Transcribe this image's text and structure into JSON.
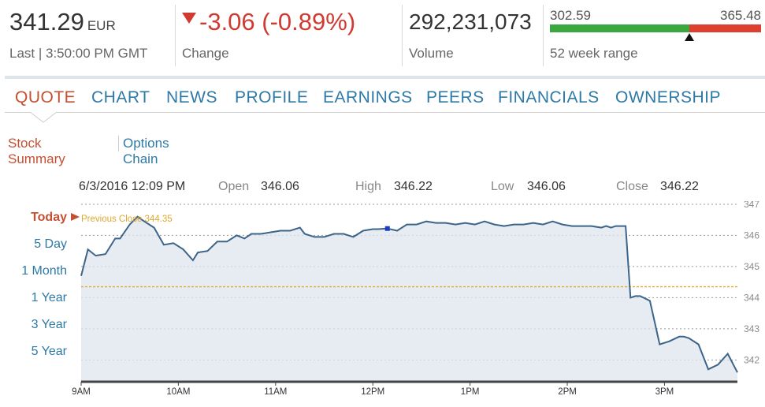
{
  "quote": {
    "price": "341.29",
    "currency": "EUR",
    "last_label": "Last | 3:50:00 PM GMT",
    "change": "-3.06 (-0.89%)",
    "change_label": "Change",
    "volume": "292,231,073",
    "volume_label": "Volume",
    "range_low": "302.59",
    "range_high": "365.48",
    "range_label": "52 week range",
    "range_position": 0.66
  },
  "tabs": [
    {
      "label": "QUOTE",
      "active": true
    },
    {
      "label": "CHART",
      "active": false
    },
    {
      "label": "NEWS",
      "active": false
    },
    {
      "label": "PROFILE",
      "active": false
    },
    {
      "label": "EARNINGS",
      "active": false
    },
    {
      "label": "PEERS",
      "active": false
    },
    {
      "label": "FINANCIALS",
      "active": false
    },
    {
      "label": "OWNERSHIP",
      "active": false
    }
  ],
  "subtabs": [
    {
      "label": "Stock Summary",
      "active": true
    },
    {
      "label": "Options Chain",
      "active": false
    }
  ],
  "stats": {
    "datetime": "6/3/2016 12:09 PM",
    "open_label": "Open",
    "open": "346.06",
    "high_label": "High",
    "high": "346.22",
    "low_label": "Low",
    "low": "346.06",
    "close_label": "Close",
    "close": "346.22"
  },
  "ranges": [
    {
      "label": "Today",
      "active": true
    },
    {
      "label": "5 Day",
      "active": false
    },
    {
      "label": "1 Month",
      "active": false
    },
    {
      "label": "1 Year",
      "active": false
    },
    {
      "label": "3 Year",
      "active": false
    },
    {
      "label": "5 Year",
      "active": false
    }
  ],
  "colors": {
    "accent": "#c45031",
    "link": "#2e79a6",
    "down": "#d03a31",
    "line": "#3d6489",
    "area": "#dde6ee",
    "prev_close": "#e0a82e"
  },
  "chart_data": {
    "type": "area",
    "title": "",
    "xlabel": "",
    "ylabel": "",
    "previous_close_label": "Previous Close 344.35",
    "previous_close": 344.35,
    "ylim": [
      341.3,
      347.1
    ],
    "yticks": [
      347,
      346,
      345,
      344,
      343,
      342
    ],
    "ytick_labels": [
      "347",
      "346",
      "345",
      "344",
      "343",
      "342"
    ],
    "xlim": [
      9.0,
      15.75
    ],
    "xticks": [
      9,
      10,
      11,
      12,
      13,
      14,
      15
    ],
    "xtick_labels": [
      "9AM",
      "10AM",
      "11AM",
      "12PM",
      "1PM",
      "2PM",
      "3PM"
    ],
    "grid": true,
    "highlight": {
      "x": 12.15,
      "y": 346.22
    },
    "x": [
      9.0,
      9.07,
      9.15,
      9.25,
      9.35,
      9.4,
      9.5,
      9.58,
      9.65,
      9.75,
      9.85,
      9.95,
      10.05,
      10.15,
      10.2,
      10.3,
      10.4,
      10.5,
      10.6,
      10.68,
      10.75,
      10.85,
      10.95,
      11.05,
      11.15,
      11.25,
      11.3,
      11.4,
      11.5,
      11.6,
      11.7,
      11.8,
      11.9,
      12.0,
      12.05,
      12.15,
      12.25,
      12.35,
      12.45,
      12.55,
      12.65,
      12.75,
      12.85,
      12.95,
      13.05,
      13.15,
      13.25,
      13.35,
      13.45,
      13.55,
      13.65,
      13.75,
      13.85,
      13.95,
      14.05,
      14.15,
      14.25,
      14.35,
      14.4,
      14.45,
      14.5,
      14.6,
      14.65,
      14.7,
      14.75,
      14.85,
      14.95,
      15.05,
      15.15,
      15.2,
      15.25,
      15.35,
      15.45,
      15.55,
      15.65,
      15.75
    ],
    "y": [
      344.7,
      345.55,
      345.35,
      345.4,
      345.9,
      345.9,
      346.35,
      346.6,
      346.45,
      346.25,
      345.7,
      345.75,
      345.55,
      345.2,
      345.45,
      345.5,
      345.8,
      345.8,
      346.0,
      345.9,
      346.05,
      346.05,
      346.1,
      346.15,
      346.15,
      346.25,
      346.05,
      345.95,
      345.95,
      346.05,
      346.05,
      345.95,
      346.15,
      346.2,
      346.2,
      346.22,
      346.15,
      346.35,
      346.35,
      346.45,
      346.4,
      346.4,
      346.35,
      346.4,
      346.35,
      346.45,
      346.35,
      346.3,
      346.35,
      346.35,
      346.4,
      346.35,
      346.45,
      346.35,
      346.3,
      346.3,
      346.3,
      346.25,
      346.3,
      346.25,
      346.3,
      346.3,
      344.0,
      344.05,
      344.05,
      343.9,
      342.5,
      342.6,
      342.75,
      342.75,
      342.7,
      342.5,
      341.7,
      341.85,
      342.2,
      341.6
    ]
  }
}
